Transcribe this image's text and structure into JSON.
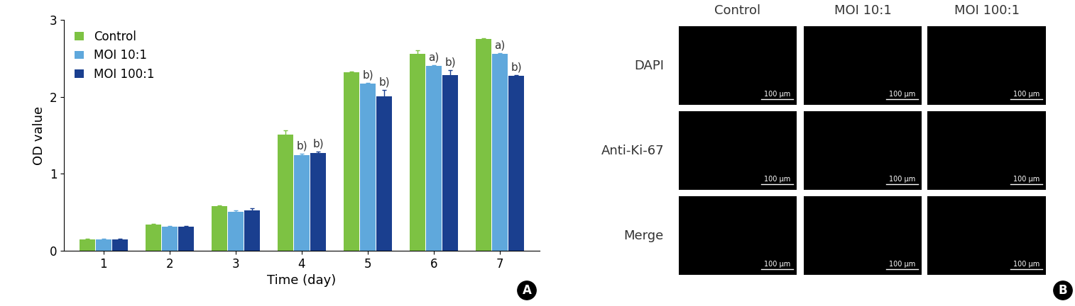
{
  "chart_data": {
    "type": "bar",
    "panel_label": "A",
    "x_label": "Time (day)",
    "y_label": "OD value",
    "categories": [
      "1",
      "2",
      "3",
      "4",
      "5",
      "6",
      "7"
    ],
    "series": [
      {
        "name": "Control",
        "color": "#7dc243",
        "values": [
          0.15,
          0.34,
          0.58,
          1.51,
          2.32,
          2.56,
          2.75
        ],
        "errors": [
          0.01,
          0.01,
          0.01,
          0.05,
          0.01,
          0.04,
          0.01
        ],
        "annotations": [
          null,
          null,
          null,
          null,
          null,
          null,
          null
        ]
      },
      {
        "name": "MOI 10:1",
        "color": "#5fa8dc",
        "values": [
          0.15,
          0.31,
          0.51,
          1.24,
          2.17,
          2.4,
          2.56
        ],
        "errors": [
          0.01,
          0.01,
          0.01,
          0.02,
          0.01,
          0.01,
          0.01
        ],
        "annotations": [
          null,
          null,
          null,
          "b)",
          "b)",
          "a)",
          "a)"
        ]
      },
      {
        "name": "MOI 100:1",
        "color": "#1a3f8f",
        "values": [
          0.15,
          0.31,
          0.52,
          1.27,
          2.01,
          2.28,
          2.27
        ],
        "errors": [
          0.01,
          0.01,
          0.03,
          0.02,
          0.08,
          0.07,
          0.01
        ],
        "annotations": [
          null,
          null,
          null,
          "b)",
          "b)",
          "b)",
          "b)"
        ]
      }
    ],
    "ylim": [
      0,
      3
    ],
    "yticks": [
      0,
      1,
      2,
      3
    ],
    "legend": "upper left",
    "grid": false
  },
  "image_panel": {
    "panel_label": "B",
    "columns": [
      "Control",
      "MOI 10:1",
      "MOI 100:1"
    ],
    "rows": [
      "DAPI",
      "Anti-Ki-67",
      "Merge"
    ],
    "scale_bar": "100 μm"
  }
}
